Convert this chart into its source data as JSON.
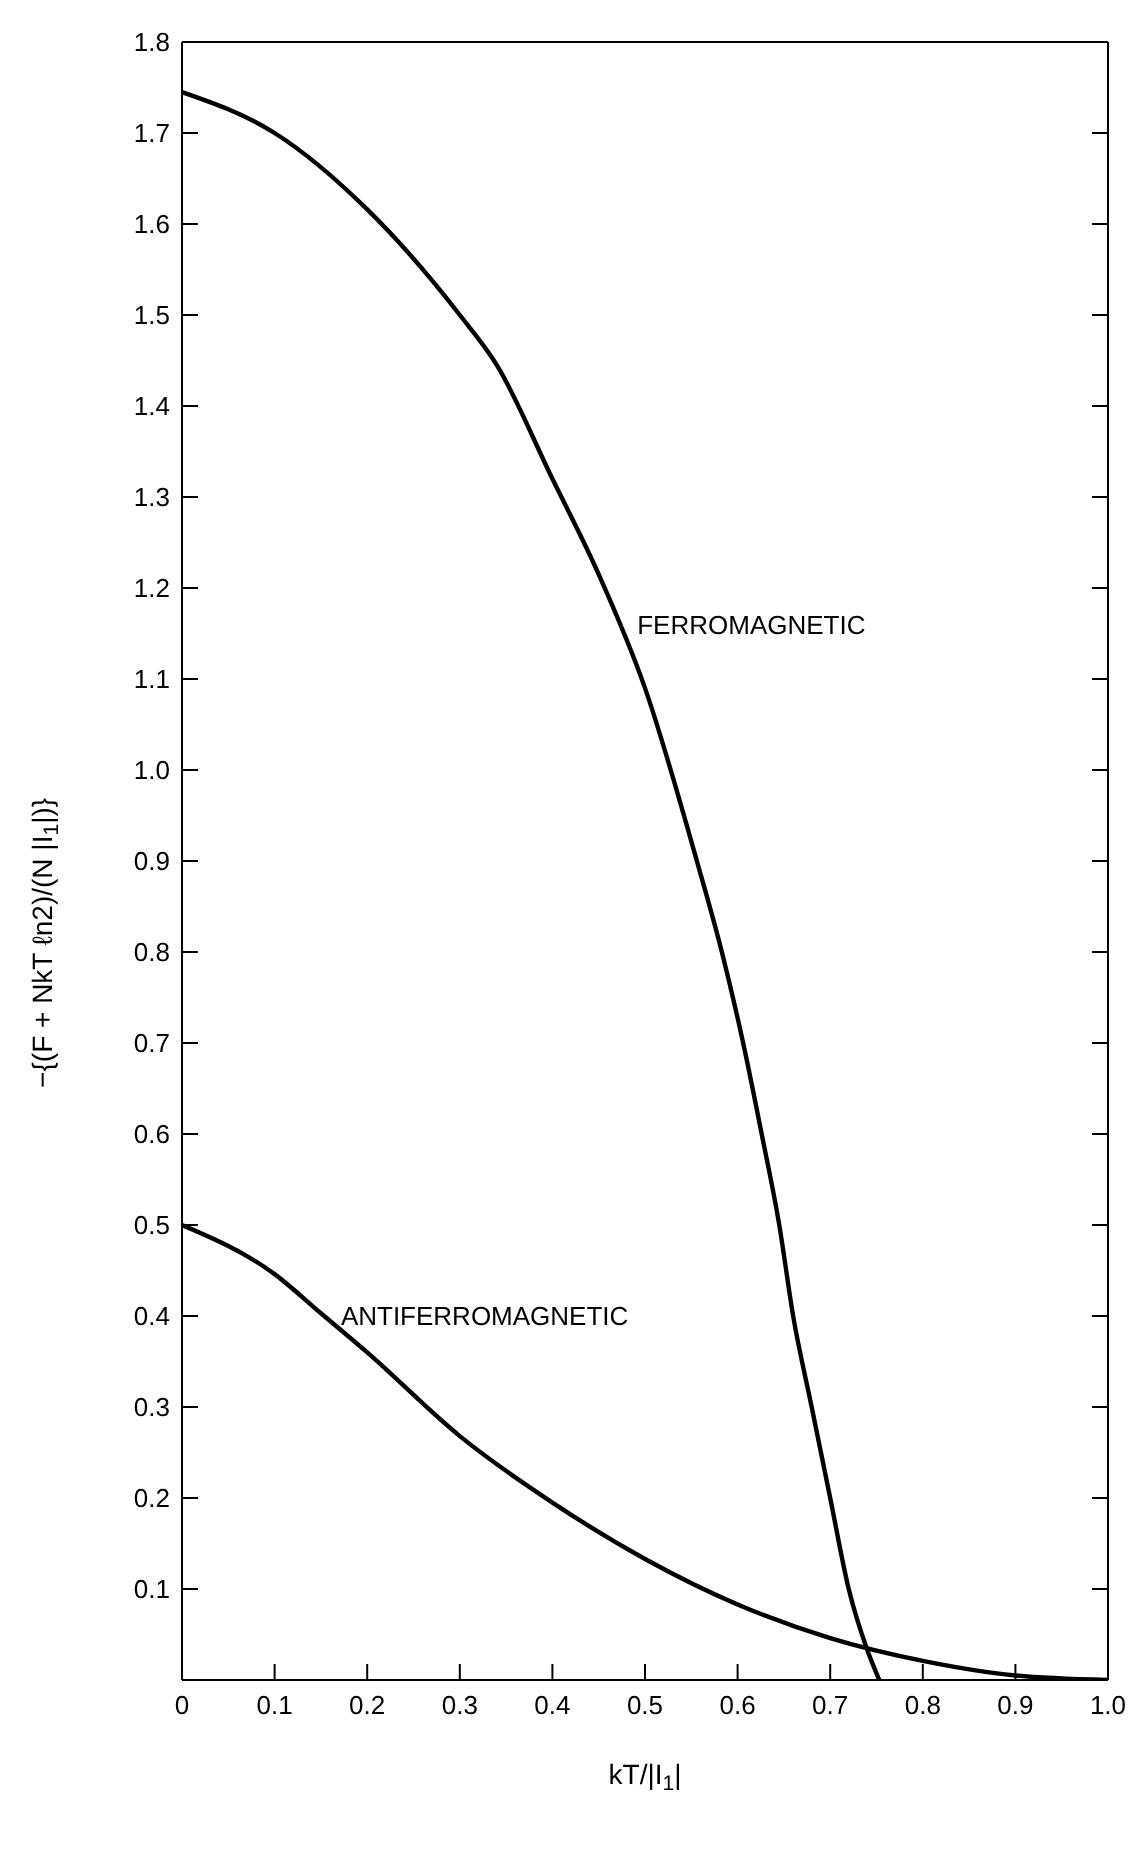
{
  "chart_data": {
    "type": "line",
    "xlabel": "kT/|I$_{1}$|",
    "ylabel": "−{(F + NkT ℓn2)/(N |I$_{1}$|)}",
    "xlim": [
      0,
      1
    ],
    "ylim": [
      0,
      1.8
    ],
    "xticks": [
      0,
      0.1,
      0.2,
      0.3,
      0.4,
      0.5,
      0.6,
      0.7,
      0.8,
      0.9,
      {
        "value": 1,
        "label": "1.0"
      }
    ],
    "yticks": [
      {
        "value": 0,
        "label": null
      },
      0.1,
      0.2,
      0.3,
      0.4,
      0.5,
      0.6,
      0.7,
      0.8,
      0.9,
      {
        "value": 1,
        "label": "1.0"
      },
      1.1,
      1.2,
      1.3,
      1.4,
      1.5,
      1.6,
      1.7,
      1.8
    ],
    "marker": "none",
    "line_style": "solid",
    "series": [
      {
        "color": "#000000",
        "x": [
          0,
          0.1,
          0.2,
          0.3,
          0.34,
          0.4,
          0.45,
          0.5,
          0.556,
          0.583,
          0.606,
          0.626,
          0.645,
          0.66,
          0.68,
          0.7,
          0.72,
          0.739,
          0.753
        ],
        "values": [
          1.745,
          1.7,
          1.616,
          1.5,
          1.445,
          1.32,
          1.215,
          1.09,
          0.9,
          0.8,
          0.7,
          0.6,
          0.5,
          0.4,
          0.3,
          0.2,
          0.1,
          0.036,
          0
        ]
      },
      {
        "color": "#000000",
        "x": [
          0,
          0.1,
          0.15,
          0.2,
          0.3,
          0.4,
          0.5,
          0.6,
          0.7,
          0.8,
          0.9,
          1
        ],
        "values": [
          0.5,
          0.446,
          0.403,
          0.36,
          0.268,
          0.195,
          0.133,
          0.083,
          0.046,
          0.021,
          0.005,
          0
        ]
      }
    ],
    "annotations": [
      {
        "text": "FERROMAGNETIC",
        "x": 0.47,
        "y": 1.16
      },
      {
        "text": "ANTIFERROMAGNETIC",
        "x": 0.15,
        "y": 0.4
      }
    ]
  }
}
